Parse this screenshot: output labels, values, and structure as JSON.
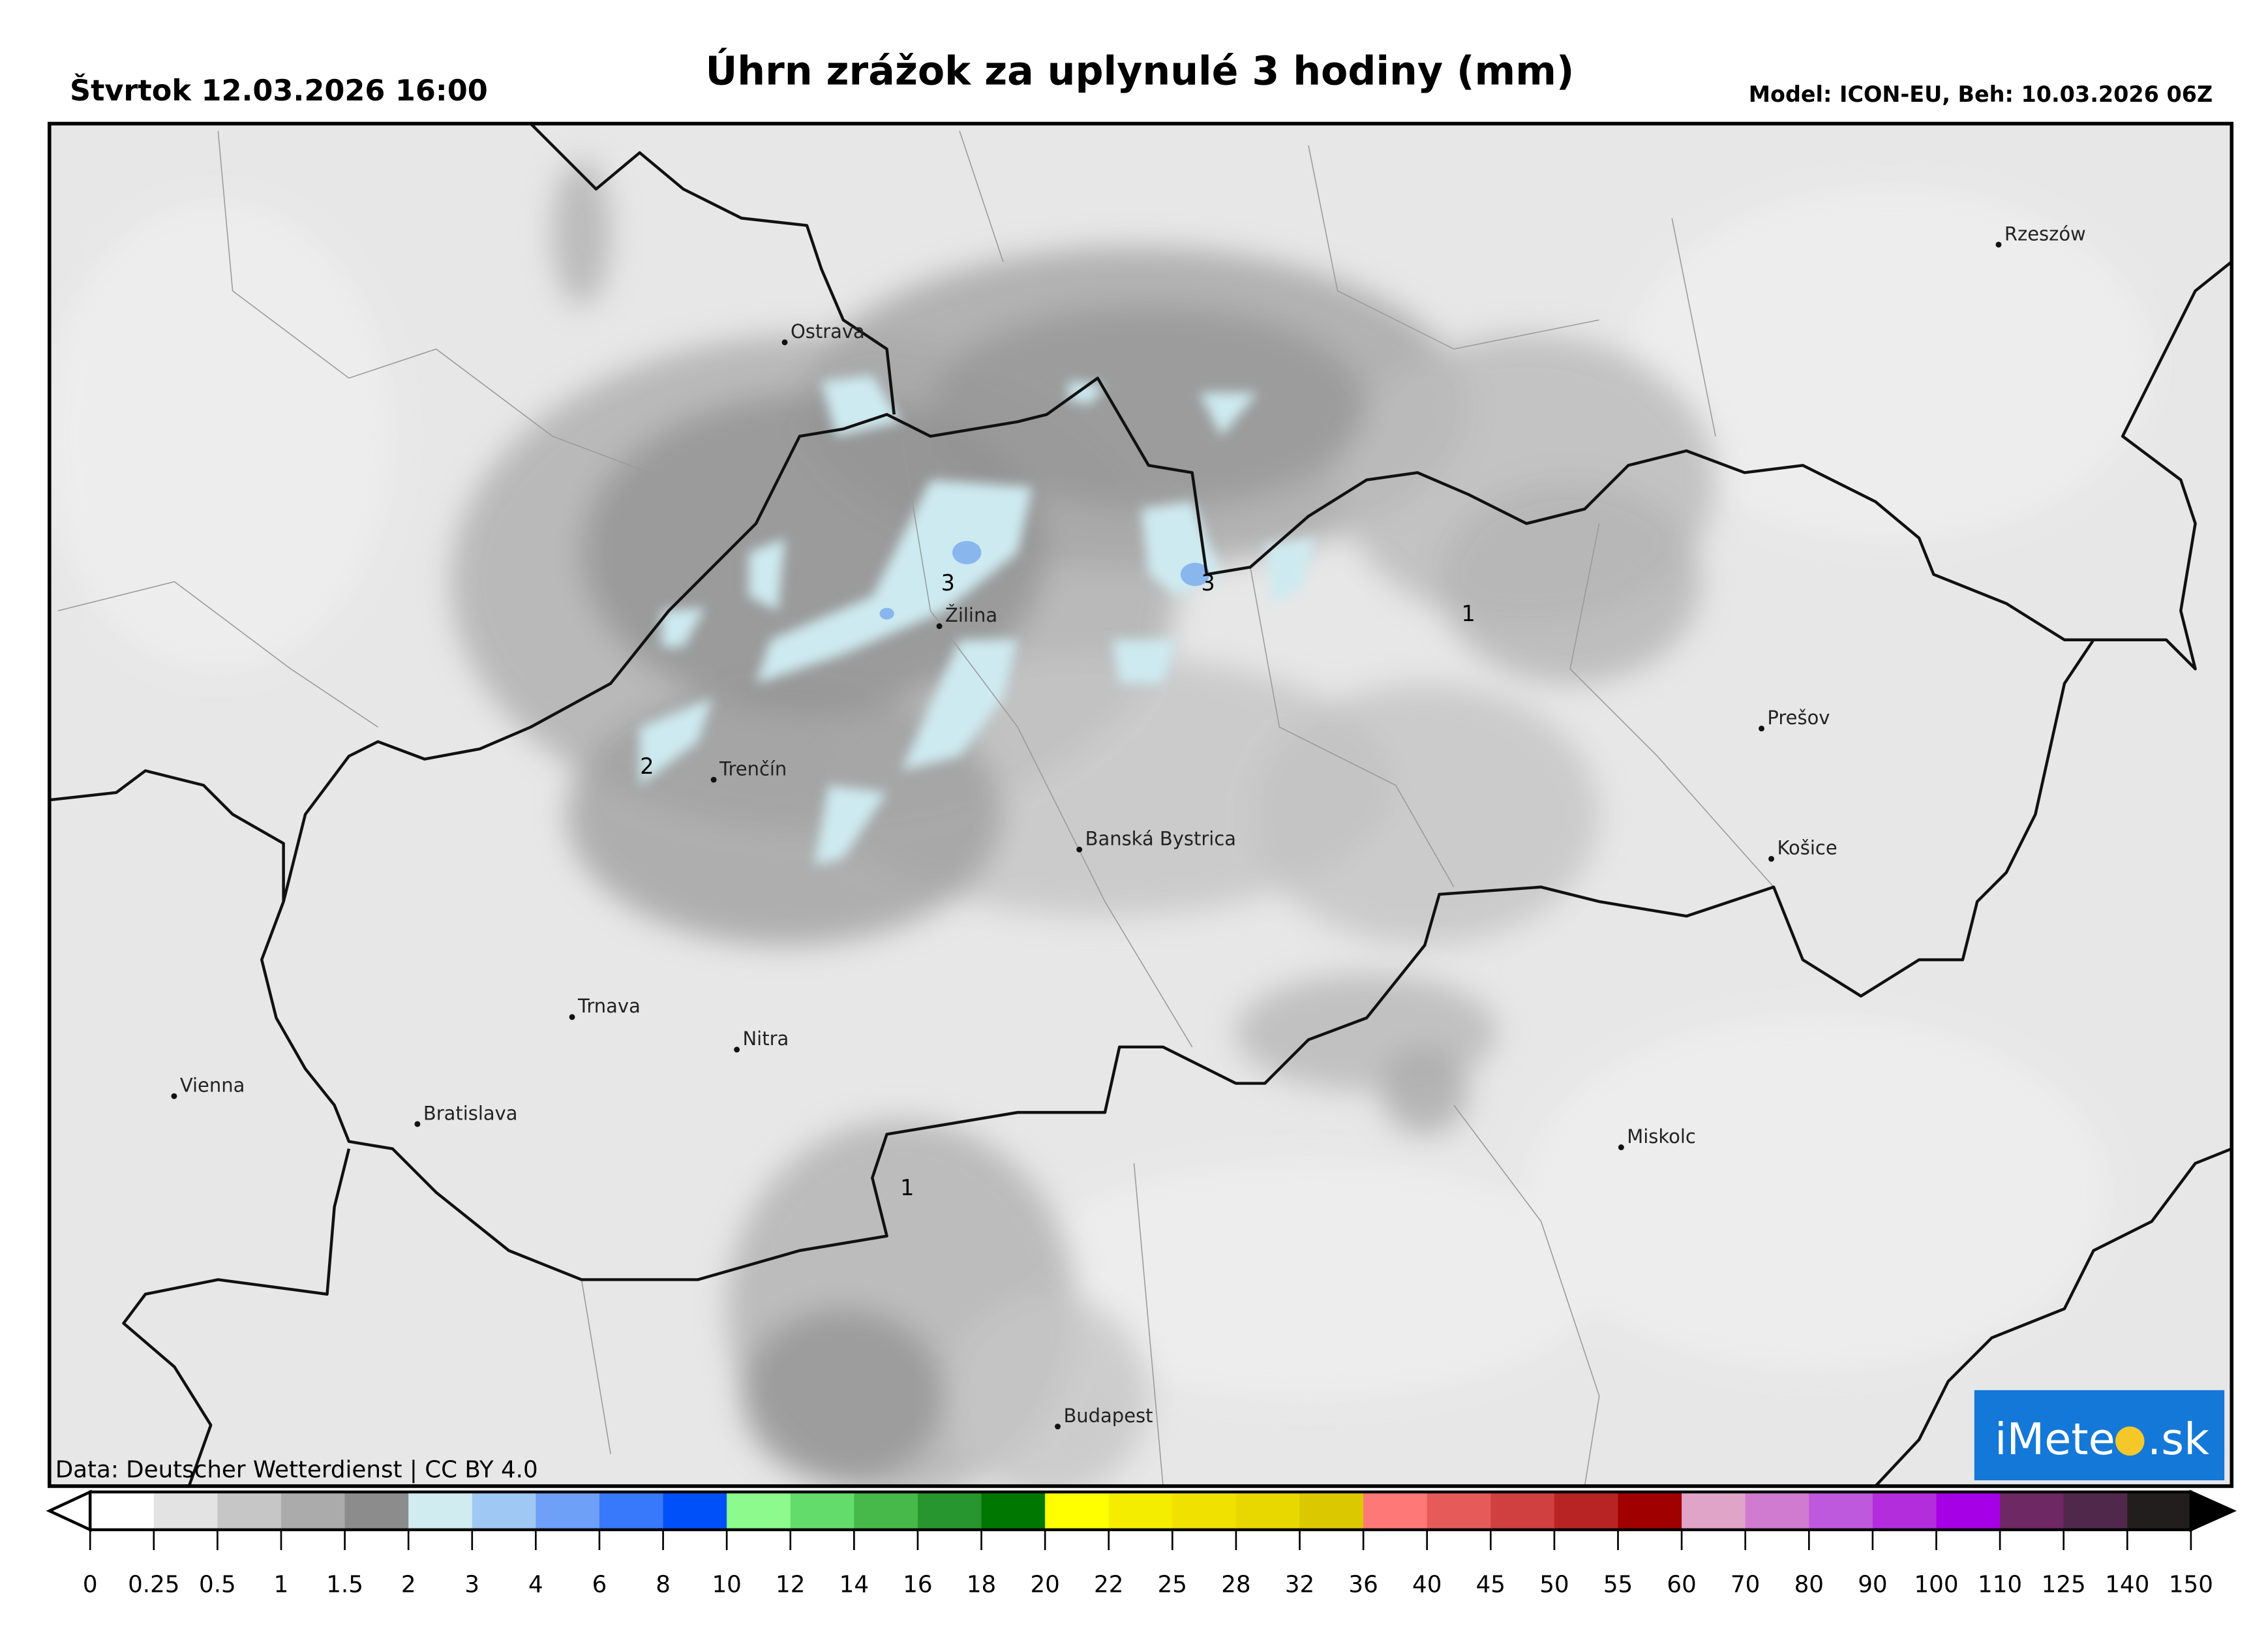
{
  "header": {
    "date": "Štvrtok 12.03.2026 16:00",
    "title": "Úhrn zrážok za uplynulé 3 hodiny (mm)",
    "model": "Model: ICON-EU, Beh: 10.03.2026 06Z"
  },
  "map": {
    "cities": [
      {
        "name": "Ostrava",
        "lon": 18.29,
        "lat": 49.83
      },
      {
        "name": "Rzeszów",
        "lon": 22.0,
        "lat": 50.04
      },
      {
        "name": "Žilina",
        "lon": 18.74,
        "lat": 49.22
      },
      {
        "name": "Trenčín",
        "lon": 18.04,
        "lat": 48.89
      },
      {
        "name": "Prešov",
        "lon": 21.24,
        "lat": 49.0
      },
      {
        "name": "Košice",
        "lon": 21.26,
        "lat": 48.72
      },
      {
        "name": "Banská Bystrica",
        "lon": 19.15,
        "lat": 48.74
      },
      {
        "name": "Trnava",
        "lon": 17.59,
        "lat": 48.38
      },
      {
        "name": "Nitra",
        "lon": 18.09,
        "lat": 48.31
      },
      {
        "name": "Vienna",
        "lon": 16.37,
        "lat": 48.21
      },
      {
        "name": "Bratislava",
        "lon": 17.11,
        "lat": 48.15
      },
      {
        "name": "Miskolc",
        "lon": 20.78,
        "lat": 48.1
      },
      {
        "name": "Budapest",
        "lon": 19.04,
        "lat": 47.5
      }
    ],
    "contour_labels": [
      "3",
      "3",
      "2",
      "1",
      "1"
    ],
    "attribution": "Data: Deutscher Wetterdienst | CC BY 4.0",
    "logo": "iMeteo.sk",
    "logo_color": "#1478d8"
  },
  "colorbar": {
    "unit": "mm",
    "ticks": [
      "0",
      "0.25",
      "0.5",
      "1",
      "1.5",
      "2",
      "3",
      "4",
      "6",
      "8",
      "10",
      "12",
      "14",
      "16",
      "18",
      "20",
      "22",
      "25",
      "28",
      "32",
      "36",
      "40",
      "45",
      "50",
      "55",
      "60",
      "70",
      "80",
      "90",
      "100",
      "110",
      "125",
      "140",
      "150"
    ],
    "colors": [
      "#ffffff",
      "#e3e3e3",
      "#c6c6c6",
      "#ababab",
      "#8c8c8c",
      "#d0ecf0",
      "#a0c8f4",
      "#6ea0f8",
      "#3878fa",
      "#0050fa",
      "#8cfa8c",
      "#64dc6c",
      "#46b94a",
      "#28962e",
      "#007800",
      "#ffff00",
      "#f5ed00",
      "#f0e100",
      "#e8d800",
      "#dcc800",
      "#ff7878",
      "#e65a5a",
      "#d04040",
      "#b82424",
      "#a00000",
      "#e0a4c8",
      "#d07ad0",
      "#be58dc",
      "#b42ddc",
      "#a500e6",
      "#6e2864",
      "#50284b",
      "#231e1e"
    ],
    "under_color": "#ffffff",
    "over_color": "#000000"
  }
}
